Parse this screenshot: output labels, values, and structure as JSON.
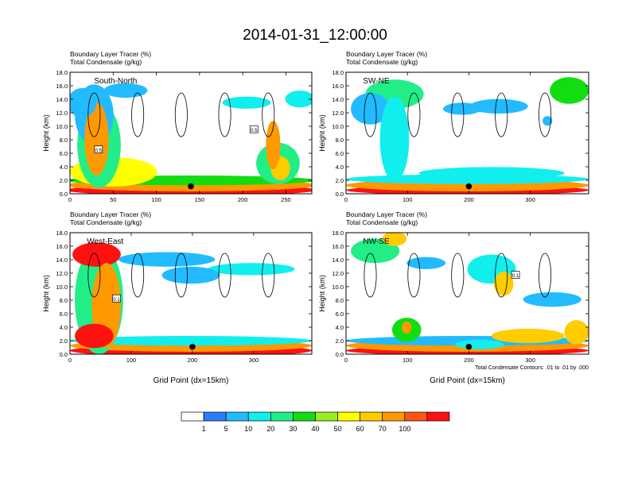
{
  "title": "2014-01-31_12:00:00",
  "colors": {
    "scale": [
      "#ffffff",
      "#2b7dff",
      "#22bbff",
      "#11eeee",
      "#22ee88",
      "#11dd11",
      "#99ee22",
      "#ffff00",
      "#ffcc00",
      "#ff9900",
      "#ff5511",
      "#ff1111"
    ],
    "contour": "#000000",
    "marker": "#000000"
  },
  "colorbar": {
    "labels": [
      "1",
      "5",
      "10",
      "20",
      "30",
      "40",
      "50",
      "60",
      "70",
      "100"
    ]
  },
  "chart_data": [
    {
      "type": "heatmap",
      "panel": "south-north",
      "name": "South-North",
      "subtitle1": "Boundary Layer Tracer   (%)",
      "subtitle2": "Total Condensate   (g/kg)",
      "ylabel": "Height (km)",
      "xlabel": "",
      "xlim": [
        0,
        280
      ],
      "ylim": [
        0,
        18
      ],
      "xticks": [
        0,
        50,
        100,
        150,
        200,
        250
      ],
      "yticks": [
        "0.0",
        "2.0",
        "4.0",
        "6.0",
        "8.0",
        "10.0",
        "12.0",
        "14.0",
        "16.0",
        "18.0"
      ],
      "contour_labels": [
        {
          "text": "0.5",
          "x": 33,
          "y": 6.5
        },
        {
          "text": "0.5",
          "x": 213,
          "y": 9.5
        }
      ],
      "marker": {
        "x": 140,
        "y": 1.1
      }
    },
    {
      "type": "heatmap",
      "panel": "sw-ne",
      "name": "SW-NE",
      "subtitle1": "Boundary Layer Tracer   (%)",
      "subtitle2": "Total Condensate   (g/kg)",
      "ylabel": "Height (km)",
      "xlabel": "",
      "xlim": [
        0,
        395
      ],
      "ylim": [
        0,
        18
      ],
      "xticks": [
        0,
        100,
        200,
        300
      ],
      "yticks": [
        "0.0",
        "2.0",
        "4.0",
        "6.0",
        "8.0",
        "10.0",
        "12.0",
        "14.0",
        "16.0",
        "18.0"
      ],
      "contour_labels": [],
      "marker": {
        "x": 200,
        "y": 1.1
      }
    },
    {
      "type": "heatmap",
      "panel": "west-east",
      "name": "West-East",
      "subtitle1": "Boundary Layer Tracer   (%)",
      "subtitle2": "Total Condensate   (g/kg)",
      "ylabel": "Height (km)",
      "xlabel": "Grid Point (dx=15km)",
      "xlim": [
        0,
        395
      ],
      "ylim": [
        0,
        18
      ],
      "xticks": [
        0,
        100,
        200,
        300
      ],
      "yticks": [
        "0.0",
        "2.0",
        "4.0",
        "6.0",
        "8.0",
        "10.0",
        "12.0",
        "14.0",
        "16.0",
        "18.0"
      ],
      "contour_labels": [
        {
          "text": "0.1",
          "x": 76,
          "y": 8.2
        }
      ],
      "marker": {
        "x": 200,
        "y": 1.1
      }
    },
    {
      "type": "heatmap",
      "panel": "nw-se",
      "name": "NW-SE",
      "subtitle1": "Boundary Layer Tracer   (%)",
      "subtitle2": "Total Condensate   (g/kg)",
      "ylabel": "Height (km)",
      "xlabel": "Grid Point (dx=15km)",
      "note": "Total Condensate Contours: .01 to .01 by .000",
      "xlim": [
        0,
        395
      ],
      "ylim": [
        0,
        18
      ],
      "xticks": [
        0,
        100,
        200,
        300
      ],
      "yticks": [
        "0.0",
        "2.0",
        "4.0",
        "6.0",
        "8.0",
        "10.0",
        "12.0",
        "14.0",
        "16.0",
        "18.0"
      ],
      "contour_labels": [
        {
          "text": "0.1",
          "x": 276,
          "y": 11.7
        }
      ],
      "marker": {
        "x": 200,
        "y": 1.1
      }
    }
  ]
}
